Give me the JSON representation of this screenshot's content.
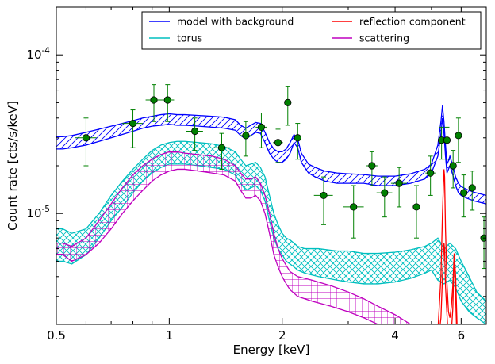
{
  "chart_data": {
    "type": "line",
    "xlabel": "Energy [keV]",
    "ylabel": "Count rate [cts/s/keV]",
    "xscale": "log",
    "yscale": "log",
    "xlim": [
      0.5,
      7.0
    ],
    "ylim": [
      2e-06,
      0.0002
    ],
    "grid": false,
    "legend_position": "top",
    "x_ticks": [
      {
        "value": 0.5,
        "label": "0.5"
      },
      {
        "value": 1,
        "label": "1"
      },
      {
        "value": 2,
        "label": "2"
      },
      {
        "value": 4,
        "label": "4"
      },
      {
        "value": 6,
        "label": "6"
      }
    ],
    "y_ticks": [
      {
        "value": 1e-05,
        "base": "10",
        "exp": "-5"
      },
      {
        "value": 0.0001,
        "base": "10",
        "exp": "-4"
      }
    ],
    "series": [
      {
        "name": "model with background",
        "color": "#0000ff",
        "hatch": "diagonal",
        "x": [
          0.5,
          0.52,
          0.55,
          0.6,
          0.65,
          0.7,
          0.75,
          0.8,
          0.85,
          0.9,
          0.95,
          1.0,
          1.05,
          1.1,
          1.2,
          1.3,
          1.4,
          1.5,
          1.55,
          1.6,
          1.65,
          1.7,
          1.75,
          1.8,
          1.85,
          1.9,
          1.95,
          2.0,
          2.05,
          2.1,
          2.15,
          2.2,
          2.25,
          2.35,
          2.45,
          2.6,
          2.8,
          3.0,
          3.3,
          3.6,
          4.0,
          4.4,
          4.8,
          5.0,
          5.2,
          5.3,
          5.35,
          5.4,
          5.45,
          5.5,
          5.55,
          5.6,
          5.7,
          5.8,
          5.9,
          6.0,
          6.2,
          6.5,
          7.0
        ],
        "lower": [
          2.55e-05,
          2.55e-05,
          2.6e-05,
          2.7e-05,
          2.85e-05,
          3e-05,
          3.15e-05,
          3.3e-05,
          3.45e-05,
          3.55e-05,
          3.6e-05,
          3.65e-05,
          3.6e-05,
          3.6e-05,
          3.55e-05,
          3.5e-05,
          3.45e-05,
          3.35e-05,
          3.1e-05,
          2.95e-05,
          3.1e-05,
          3.25e-05,
          3.2e-05,
          2.8e-05,
          2.4e-05,
          2.2e-05,
          2.1e-05,
          2.1e-05,
          2.2e-05,
          2.4e-05,
          2.8e-05,
          2.6e-05,
          2.1e-05,
          1.8e-05,
          1.7e-05,
          1.6e-05,
          1.55e-05,
          1.55e-05,
          1.55e-05,
          1.5e-05,
          1.5e-05,
          1.55e-05,
          1.65e-05,
          1.8e-05,
          2.3e-05,
          3.2e-05,
          4e-05,
          3.2e-05,
          2.3e-05,
          1.8e-05,
          1.9e-05,
          2e-05,
          1.75e-05,
          1.5e-05,
          1.35e-05,
          1.3e-05,
          1.25e-05,
          1.2e-05,
          1.15e-05
        ],
        "upper": [
          3.05e-05,
          3.05e-05,
          3.1e-05,
          3.25e-05,
          3.4e-05,
          3.55e-05,
          3.7e-05,
          3.85e-05,
          4e-05,
          4.1e-05,
          4.2e-05,
          4.25e-05,
          4.2e-05,
          4.2e-05,
          4.15e-05,
          4.1e-05,
          4.05e-05,
          3.9e-05,
          3.6e-05,
          3.45e-05,
          3.6e-05,
          3.75e-05,
          3.7e-05,
          3.25e-05,
          2.8e-05,
          2.55e-05,
          2.45e-05,
          2.45e-05,
          2.55e-05,
          2.8e-05,
          3.15e-05,
          2.95e-05,
          2.4e-05,
          2.05e-05,
          1.95e-05,
          1.85e-05,
          1.8e-05,
          1.78e-05,
          1.76e-05,
          1.72e-05,
          1.72e-05,
          1.78e-05,
          1.9e-05,
          2.05e-05,
          2.7e-05,
          3.8e-05,
          4.8e-05,
          3.8e-05,
          2.7e-05,
          2.05e-05,
          2.15e-05,
          2.3e-05,
          2e-05,
          1.7e-05,
          1.55e-05,
          1.48e-05,
          1.42e-05,
          1.36e-05,
          1.3e-05
        ]
      },
      {
        "name": "torus",
        "color": "#00bfbf",
        "hatch": "cross",
        "x": [
          0.5,
          0.52,
          0.55,
          0.6,
          0.65,
          0.7,
          0.75,
          0.8,
          0.85,
          0.9,
          0.95,
          1.0,
          1.05,
          1.1,
          1.2,
          1.3,
          1.4,
          1.5,
          1.55,
          1.6,
          1.65,
          1.7,
          1.75,
          1.8,
          1.85,
          1.9,
          1.95,
          2.0,
          2.05,
          2.1,
          2.15,
          2.2,
          2.3,
          2.5,
          2.8,
          3.0,
          3.3,
          3.6,
          4.0,
          4.4,
          4.8,
          5.0,
          5.2,
          5.4,
          5.6,
          5.8,
          6.0,
          6.3,
          6.6,
          7.0
        ],
        "lower": [
          5e-06,
          5e-06,
          4.8e-06,
          5.5e-06,
          7e-06,
          9e-06,
          1.1e-05,
          1.35e-05,
          1.6e-05,
          1.8e-05,
          1.95e-05,
          2.05e-05,
          2.05e-05,
          2.05e-05,
          2e-05,
          1.95e-05,
          1.9e-05,
          1.75e-05,
          1.55e-05,
          1.4e-05,
          1.45e-05,
          1.5e-05,
          1.4e-05,
          1.2e-05,
          9e-06,
          7e-06,
          6e-06,
          5.5e-06,
          5e-06,
          4.8e-06,
          4.6e-06,
          4.4e-06,
          4.2e-06,
          4e-06,
          3.8e-06,
          3.7e-06,
          3.6e-06,
          3.6e-06,
          3.7e-06,
          3.9e-06,
          4.2e-06,
          4.4e-06,
          3.8e-06,
          3.6e-06,
          3.8e-06,
          3.4e-06,
          2.8e-06,
          2.4e-06,
          2.2e-06,
          2e-06
        ],
        "upper": [
          8e-06,
          8e-06,
          7.5e-06,
          8e-06,
          1e-05,
          1.3e-05,
          1.6e-05,
          1.9e-05,
          2.2e-05,
          2.5e-05,
          2.7e-05,
          2.8e-05,
          2.85e-05,
          2.85e-05,
          2.8e-05,
          2.75e-05,
          2.65e-05,
          2.45e-05,
          2.2e-05,
          2e-05,
          2.05e-05,
          2.1e-05,
          1.95e-05,
          1.7e-05,
          1.3e-05,
          1e-05,
          8.5e-06,
          7.5e-06,
          7e-06,
          6.8e-06,
          6.5e-06,
          6.2e-06,
          6e-06,
          6e-06,
          5.8e-06,
          5.8e-06,
          5.6e-06,
          5.6e-06,
          5.7e-06,
          5.9e-06,
          6.2e-06,
          6.5e-06,
          7e-06,
          6e-06,
          6.5e-06,
          6e-06,
          5e-06,
          4e-06,
          3.2e-06,
          2.8e-06
        ]
      },
      {
        "name": "reflection component",
        "color": "#ff0000",
        "hatch": "none",
        "x": [
          5.2,
          5.3,
          5.35,
          5.4,
          5.42,
          5.45,
          5.5,
          5.55,
          5.6,
          5.65,
          5.7,
          5.75,
          5.8,
          5.85,
          5.9,
          6.0
        ],
        "lower": [
          1.5e-06,
          2.2e-06,
          4e-06,
          6.5e-06,
          6e-06,
          3.5e-06,
          2.3e-06,
          1.6e-06,
          1.5e-06,
          1.8e-06,
          2.5e-06,
          5.6e-06,
          3e-06,
          1.5e-06,
          1.2e-06,
          1e-06
        ],
        "upper": [
          1.8e-06,
          4e-06,
          1e-05,
          1.9e-05,
          1.7e-05,
          8e-06,
          3.6e-06,
          2.4e-06,
          2.2e-06,
          2.6e-06,
          3.5e-06,
          5.6e-06,
          4e-06,
          2e-06,
          1.5e-06,
          1.2e-06
        ]
      },
      {
        "name": "scattering",
        "color": "#bf00bf",
        "hatch": "grid",
        "x": [
          0.5,
          0.52,
          0.55,
          0.6,
          0.65,
          0.7,
          0.75,
          0.8,
          0.85,
          0.9,
          0.95,
          1.0,
          1.05,
          1.1,
          1.2,
          1.3,
          1.4,
          1.5,
          1.55,
          1.6,
          1.65,
          1.7,
          1.75,
          1.8,
          1.85,
          1.9,
          1.95,
          2.0,
          2.05,
          2.1,
          2.2,
          2.4,
          2.7,
          3.0,
          3.3,
          3.6,
          4.0,
          4.4
        ],
        "lower": [
          5.5e-06,
          5.5e-06,
          5e-06,
          5.5e-06,
          6.5e-06,
          8e-06,
          1e-05,
          1.2e-05,
          1.4e-05,
          1.6e-05,
          1.75e-05,
          1.85e-05,
          1.9e-05,
          1.9e-05,
          1.85e-05,
          1.8e-05,
          1.75e-05,
          1.6e-05,
          1.4e-05,
          1.25e-05,
          1.25e-05,
          1.3e-05,
          1.2e-05,
          1e-05,
          7.5e-06,
          5.5e-06,
          4.6e-06,
          4e-06,
          3.6e-06,
          3.3e-06,
          3e-06,
          2.8e-06,
          2.6e-06,
          2.4e-06,
          2.2e-06,
          2e-06,
          1.8e-06,
          1.6e-06
        ],
        "upper": [
          6.5e-06,
          6.5e-06,
          6.2e-06,
          7e-06,
          9e-06,
          1.15e-05,
          1.45e-05,
          1.75e-05,
          2e-05,
          2.2e-05,
          2.35e-05,
          2.45e-05,
          2.45e-05,
          2.4e-05,
          2.35e-05,
          2.3e-05,
          2.2e-05,
          2e-05,
          1.8e-05,
          1.65e-05,
          1.65e-05,
          1.7e-05,
          1.55e-05,
          1.3e-05,
          1e-05,
          7.5e-06,
          6e-06,
          5.2e-06,
          4.7e-06,
          4.3e-06,
          4e-06,
          3.8e-06,
          3.5e-06,
          3.2e-06,
          2.9e-06,
          2.6e-06,
          2.3e-06,
          2e-06
        ]
      }
    ],
    "data_points": {
      "color": "#008000",
      "points": [
        {
          "x": 0.6,
          "y": 3e-05,
          "xerr": 0.04,
          "yerr_low": 1e-05,
          "yerr_high": 1e-05
        },
        {
          "x": 0.8,
          "y": 3.7e-05,
          "xerr": 0.05,
          "yerr_low": 1.1e-05,
          "yerr_high": 8e-06
        },
        {
          "x": 0.91,
          "y": 5.2e-05,
          "xerr": 0.045,
          "yerr_low": 1.4e-05,
          "yerr_high": 1.3e-05
        },
        {
          "x": 0.99,
          "y": 5.2e-05,
          "xerr": 0.04,
          "yerr_low": 1.4e-05,
          "yerr_high": 1.3e-05
        },
        {
          "x": 1.17,
          "y": 3.3e-05,
          "xerr": 0.06,
          "yerr_low": 8e-06,
          "yerr_high": 7e-06
        },
        {
          "x": 1.38,
          "y": 2.6e-05,
          "xerr": 0.07,
          "yerr_low": 7e-06,
          "yerr_high": 6e-06
        },
        {
          "x": 1.6,
          "y": 3.1e-05,
          "xerr": 0.06,
          "yerr_low": 8e-06,
          "yerr_high": 7e-06
        },
        {
          "x": 1.76,
          "y": 3.5e-05,
          "xerr": 0.06,
          "yerr_low": 9e-06,
          "yerr_high": 8e-06
        },
        {
          "x": 1.95,
          "y": 2.8e-05,
          "xerr": 0.06,
          "yerr_low": 7e-06,
          "yerr_high": 6e-06
        },
        {
          "x": 2.07,
          "y": 5e-05,
          "xerr": 0.04,
          "yerr_low": 1.4e-05,
          "yerr_high": 1.3e-05
        },
        {
          "x": 2.2,
          "y": 3e-05,
          "xerr": 0.05,
          "yerr_low": 8e-06,
          "yerr_high": 7e-06
        },
        {
          "x": 2.58,
          "y": 1.3e-05,
          "xerr": 0.15,
          "yerr_low": 4.5e-06,
          "yerr_high": 4e-06
        },
        {
          "x": 3.1,
          "y": 1.1e-05,
          "xerr": 0.2,
          "yerr_low": 4e-06,
          "yerr_high": 4e-06
        },
        {
          "x": 3.47,
          "y": 2e-05,
          "xerr": 0.12,
          "yerr_low": 5e-06,
          "yerr_high": 4.5e-06
        },
        {
          "x": 3.75,
          "y": 1.35e-05,
          "xerr": 0.18,
          "yerr_low": 4e-06,
          "yerr_high": 3.5e-06
        },
        {
          "x": 4.1,
          "y": 1.55e-05,
          "xerr": 0.2,
          "yerr_low": 4.5e-06,
          "yerr_high": 4e-06
        },
        {
          "x": 4.56,
          "y": 1.1e-05,
          "xerr": 0.1,
          "yerr_low": 4e-06,
          "yerr_high": 4e-06
        },
        {
          "x": 4.97,
          "y": 1.8e-05,
          "xerr": 0.15,
          "yerr_low": 5e-06,
          "yerr_high": 5e-06
        },
        {
          "x": 5.32,
          "y": 2.9e-05,
          "xerr": 0.05,
          "yerr_low": 7e-06,
          "yerr_high": 6e-06
        },
        {
          "x": 5.5,
          "y": 2.9e-05,
          "xerr": 0.06,
          "yerr_low": 7e-06,
          "yerr_high": 6e-06
        },
        {
          "x": 5.71,
          "y": 2e-05,
          "xerr": 0.07,
          "yerr_low": 5.5e-06,
          "yerr_high": 5e-06
        },
        {
          "x": 5.9,
          "y": 3.1e-05,
          "xerr": 0.05,
          "yerr_low": 1e-05,
          "yerr_high": 9e-06
        },
        {
          "x": 6.1,
          "y": 1.35e-05,
          "xerr": 0.1,
          "yerr_low": 4e-06,
          "yerr_high": 4e-06
        },
        {
          "x": 6.42,
          "y": 1.45e-05,
          "xerr": 0.1,
          "yerr_low": 4e-06,
          "yerr_high": 4e-06
        },
        {
          "x": 6.9,
          "y": 7e-06,
          "xerr": 0.15,
          "yerr_low": 2.5e-06,
          "yerr_high": 2.5e-06
        }
      ]
    }
  }
}
